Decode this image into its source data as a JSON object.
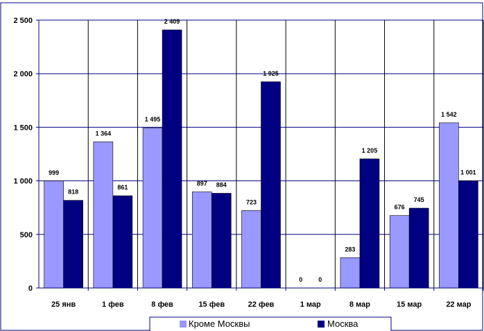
{
  "chart_data": {
    "type": "bar",
    "categories": [
      "25 янв",
      "1 фев",
      "8 фев",
      "15 фев",
      "22 фев",
      "1 мар",
      "8 мар",
      "15 мар",
      "22 мар"
    ],
    "series": [
      {
        "name": "Кроме Москвы",
        "color": "#9999ff",
        "values": [
          999,
          1364,
          1495,
          897,
          723,
          0,
          283,
          676,
          1542
        ],
        "labels": [
          "999",
          "1 364",
          "1 495",
          "897",
          "723",
          "0",
          "283",
          "676",
          "1 542"
        ]
      },
      {
        "name": "Москва",
        "color": "#000080",
        "values": [
          818,
          861,
          2409,
          884,
          1925,
          0,
          1205,
          745,
          1001
        ],
        "labels": [
          "818",
          "861",
          "2 409",
          "884",
          "1 925",
          "0",
          "1 205",
          "745",
          "1 001"
        ]
      }
    ],
    "ylim": [
      0,
      2500
    ],
    "yticks": [
      0,
      500,
      1000,
      1500,
      2000,
      2500
    ],
    "ytick_labels": [
      "0",
      "500",
      "1 000",
      "1 500",
      "2 000",
      "2 500"
    ],
    "grid": true,
    "legend_position": "bottom"
  }
}
